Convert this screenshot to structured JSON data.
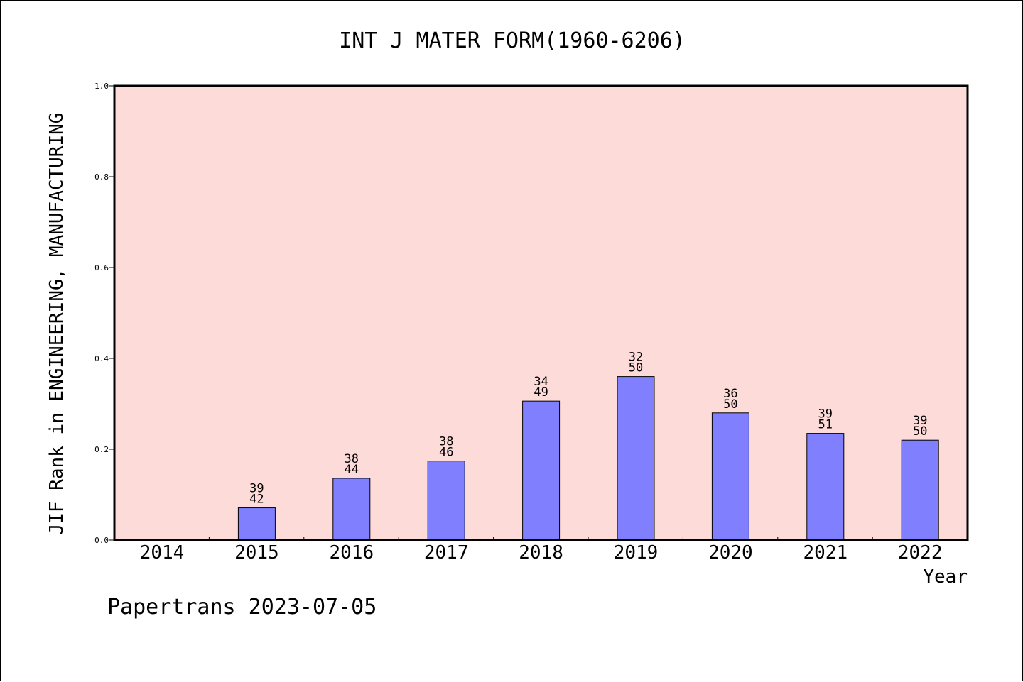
{
  "colors": {
    "plot_background": "#fddbd8",
    "bar_fill": "#8080ff",
    "bar_stroke": "#000000",
    "axis": "#000000"
  },
  "chart_data": {
    "type": "bar",
    "title": "INT J MATER FORM(1960-6206)",
    "xlabel": "Year",
    "ylabel": "JIF Rank in ENGINEERING, MANUFACTURING",
    "categories": [
      "2014",
      "2015",
      "2016",
      "2017",
      "2018",
      "2019",
      "2020",
      "2021",
      "2022"
    ],
    "values": [
      null,
      0.071,
      0.136,
      0.174,
      0.306,
      0.36,
      0.28,
      0.235,
      0.22
    ],
    "rank": [
      null,
      39,
      38,
      38,
      34,
      32,
      36,
      39,
      39
    ],
    "total": [
      null,
      42,
      44,
      46,
      49,
      50,
      50,
      51,
      50
    ],
    "ylim": [
      0,
      1.0
    ],
    "yticks": [
      "0.0",
      "0.2",
      "0.4",
      "0.6",
      "0.8",
      "1.0"
    ],
    "grid": false,
    "legend": "none"
  },
  "footer": {
    "text": "Papertrans 2023-07-05"
  }
}
